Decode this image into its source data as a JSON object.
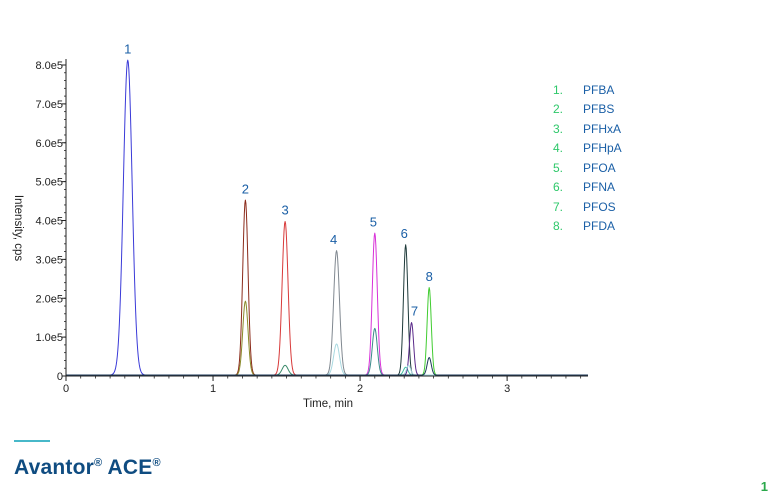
{
  "chart_data": {
    "type": "line",
    "title": "",
    "xlabel": "Time, min",
    "ylabel": "Intensity, cps",
    "xlim": [
      0,
      3.55
    ],
    "ylim": [
      0,
      820000.0
    ],
    "x_ticks": [
      0,
      1,
      2,
      3
    ],
    "x_tick_labels": [
      "0",
      "1",
      "2",
      "3"
    ],
    "y_ticks": [
      0,
      100000,
      200000,
      300000,
      400000,
      500000,
      600000,
      700000,
      800000
    ],
    "y_tick_labels": [
      "0",
      "1.0e5",
      "2.0e5",
      "3.0e5",
      "4.0e5",
      "5.0e5",
      "6.0e5",
      "7.0e5",
      "8.0e5"
    ],
    "grid": false,
    "peaks": [
      {
        "label": "1",
        "x": 0.42,
        "height": 810000,
        "width": 0.03,
        "color": "#3a3ad8"
      },
      {
        "label": "2",
        "x": 1.22,
        "height": 450000,
        "width": 0.018,
        "color": "#8b2a1a"
      },
      {
        "label": "2",
        "x": 1.22,
        "height": 190000,
        "width": 0.018,
        "color": "#8a8a2a"
      },
      {
        "label": "3",
        "x": 1.49,
        "height": 395000,
        "width": 0.02,
        "color": "#d83a3a"
      },
      {
        "label": "3",
        "x": 1.49,
        "height": 25000,
        "width": 0.02,
        "color": "#3a8a6a"
      },
      {
        "label": "4",
        "x": 1.84,
        "height": 320000,
        "width": 0.02,
        "color": "#808890"
      },
      {
        "label": "4",
        "x": 1.84,
        "height": 80000,
        "width": 0.02,
        "color": "#a8d8e0"
      },
      {
        "label": "5",
        "x": 2.1,
        "height": 365000,
        "width": 0.017,
        "color": "#d830d8"
      },
      {
        "label": "5",
        "x": 2.1,
        "height": 120000,
        "width": 0.017,
        "color": "#3a8a8a"
      },
      {
        "label": "6",
        "x": 2.31,
        "height": 335000,
        "width": 0.015,
        "color": "#1e3a3a"
      },
      {
        "label": "6",
        "x": 2.31,
        "height": 20000,
        "width": 0.015,
        "color": "#40c0a0"
      },
      {
        "label": "7",
        "x": 2.35,
        "height": 135000,
        "width": 0.014,
        "color": "#5a2a8a"
      },
      {
        "label": "7",
        "x": 2.33,
        "height": 25000,
        "width": 0.014,
        "color": "#a8d8e0"
      },
      {
        "label": "8",
        "x": 2.47,
        "height": 225000,
        "width": 0.014,
        "color": "#40cc30"
      },
      {
        "label": "8",
        "x": 2.47,
        "height": 45000,
        "width": 0.014,
        "color": "#1e3a5a"
      }
    ],
    "peak_labels": [
      {
        "text": "1",
        "x": 0.42,
        "y": 830000
      },
      {
        "text": "2",
        "x": 1.22,
        "y": 470000
      },
      {
        "text": "3",
        "x": 1.49,
        "y": 415000
      },
      {
        "text": "4",
        "x": 1.82,
        "y": 340000
      },
      {
        "text": "5",
        "x": 2.09,
        "y": 385000
      },
      {
        "text": "6",
        "x": 2.3,
        "y": 355000
      },
      {
        "text": "7",
        "x": 2.37,
        "y": 155000
      },
      {
        "text": "8",
        "x": 2.47,
        "y": 245000
      }
    ],
    "legend": [
      {
        "number": "1.",
        "label": "PFBA"
      },
      {
        "number": "2.",
        "label": "PFBS"
      },
      {
        "number": "3.",
        "label": "PFHxA"
      },
      {
        "number": "4.",
        "label": "PFHpA"
      },
      {
        "number": "5.",
        "label": "PFOA"
      },
      {
        "number": "6.",
        "label": "PFNA"
      },
      {
        "number": "7.",
        "label": "PFOS"
      },
      {
        "number": "8.",
        "label": "PFDA"
      }
    ],
    "legend_position": "right"
  },
  "brand": {
    "name": "Avantor",
    "mark": "®",
    "suffix": " ACE",
    "mark2": "®",
    "color": "#0f4c81",
    "rule_color": "#47b8c9"
  },
  "page_number": "1",
  "colors": {
    "axis": "#222222",
    "label_blue": "#1a5fa6",
    "legend_number": "#2ec86a",
    "page_number": "#2aa84a"
  }
}
